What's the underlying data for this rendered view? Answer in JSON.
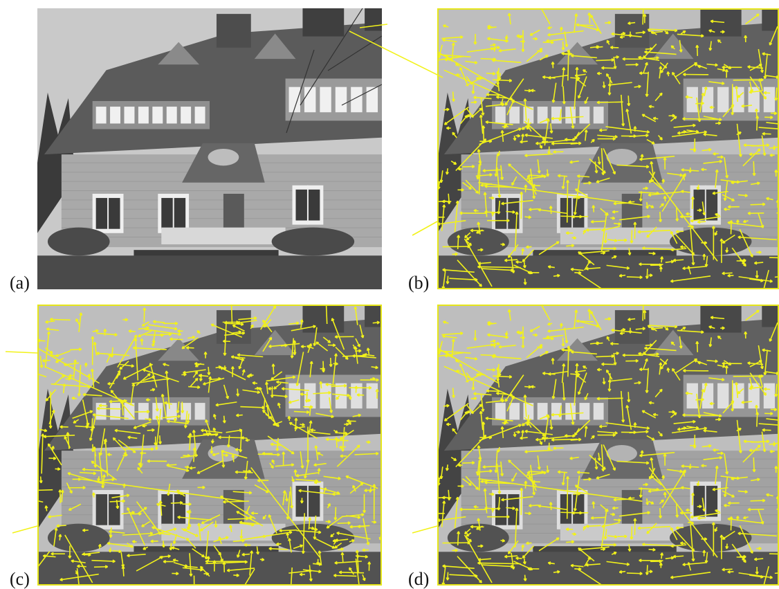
{
  "figure": {
    "panels": [
      {
        "id": "a",
        "label": "(a)",
        "overlay": "none",
        "frame": false
      },
      {
        "id": "b",
        "label": "(b)",
        "overlay": "keypoint-arrows",
        "frame": true
      },
      {
        "id": "c",
        "label": "(c)",
        "overlay": "keypoint-arrows",
        "frame": true
      },
      {
        "id": "d",
        "label": "(d)",
        "overlay": "keypoint-arrows",
        "frame": true
      }
    ],
    "colors": {
      "arrow": "#f2f21a",
      "frame": "#e6e619",
      "sky": "#c9c9c9",
      "roof": "#5b5b5b",
      "wall": "#a9a9a9",
      "ground": "#4a4a4a",
      "trees": "#3a3a3a",
      "window": "#f0f0f0"
    }
  }
}
